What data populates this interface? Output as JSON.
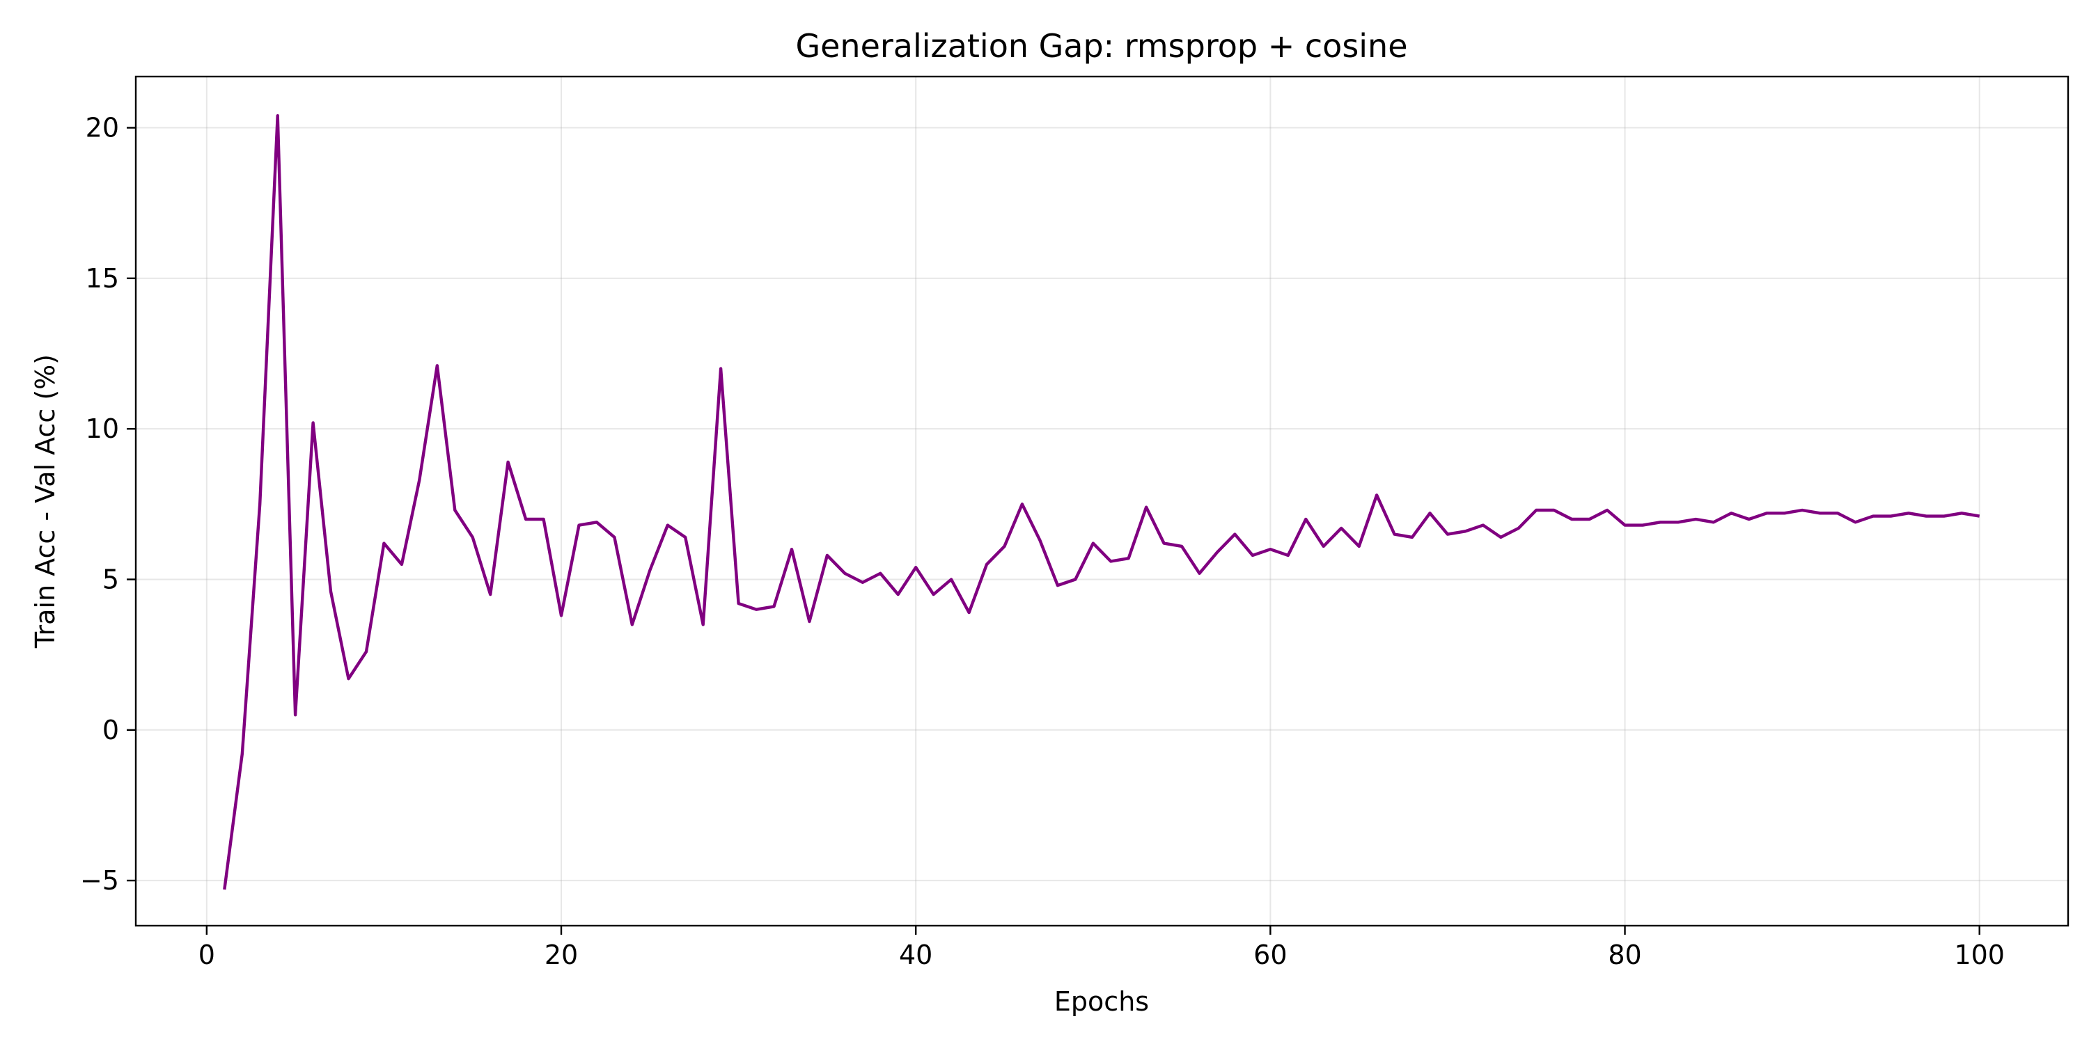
{
  "chart_data": {
    "type": "line",
    "title": "Generalization Gap: rmsprop + cosine",
    "xlabel": "Epochs",
    "ylabel": "Train Acc - Val Acc (%)",
    "xlim": [
      -4,
      105
    ],
    "ylim": [
      -6.5,
      21.7
    ],
    "xticks": [
      0,
      20,
      40,
      60,
      80,
      100
    ],
    "xtick_labels": [
      "0",
      "20",
      "40",
      "60",
      "80",
      "100"
    ],
    "yticks": [
      -5,
      0,
      5,
      10,
      15,
      20
    ],
    "ytick_labels": [
      "−5",
      "0",
      "5",
      "10",
      "15",
      "20"
    ],
    "grid": true,
    "series": [
      {
        "color": "#800080",
        "x": [
          1,
          2,
          3,
          4,
          5,
          6,
          7,
          8,
          9,
          10,
          11,
          12,
          13,
          14,
          15,
          16,
          17,
          18,
          19,
          20,
          21,
          22,
          23,
          24,
          25,
          26,
          27,
          28,
          29,
          30,
          31,
          32,
          33,
          34,
          35,
          36,
          37,
          38,
          39,
          40,
          41,
          42,
          43,
          44,
          45,
          46,
          47,
          48,
          49,
          50,
          51,
          52,
          53,
          54,
          55,
          56,
          57,
          58,
          59,
          60,
          61,
          62,
          63,
          64,
          65,
          66,
          67,
          68,
          69,
          70,
          71,
          72,
          73,
          74,
          75,
          76,
          77,
          78,
          79,
          80,
          81,
          82,
          83,
          84,
          85,
          86,
          87,
          88,
          89,
          90,
          91,
          92,
          93,
          94,
          95,
          96,
          97,
          98,
          99,
          100
        ],
        "values": [
          -5.3,
          -0.8,
          7.5,
          20.4,
          0.5,
          10.2,
          4.6,
          1.7,
          2.6,
          6.2,
          5.5,
          8.3,
          12.1,
          7.3,
          6.4,
          4.5,
          8.9,
          7.0,
          7.0,
          3.8,
          6.8,
          6.9,
          6.4,
          3.5,
          5.3,
          6.8,
          6.4,
          3.5,
          12.0,
          4.2,
          4.0,
          4.1,
          6.0,
          3.6,
          5.8,
          5.2,
          4.9,
          5.2,
          4.5,
          5.4,
          4.5,
          5.0,
          3.9,
          5.5,
          6.1,
          7.5,
          6.3,
          4.8,
          5.0,
          6.2,
          5.6,
          5.7,
          7.4,
          6.2,
          6.1,
          5.2,
          5.9,
          6.5,
          5.8,
          6.0,
          5.8,
          7.0,
          6.1,
          6.7,
          6.1,
          7.8,
          6.5,
          6.4,
          7.2,
          6.5,
          6.6,
          6.8,
          6.4,
          6.7,
          7.3,
          7.3,
          7.0,
          7.0,
          7.3,
          6.8,
          6.8,
          6.9,
          6.9,
          7.0,
          6.9,
          7.2,
          7.0,
          7.2,
          7.2,
          7.3,
          7.2,
          7.2,
          6.9,
          7.1,
          7.1,
          7.2,
          7.1,
          7.1,
          7.2,
          7.1
        ]
      }
    ]
  }
}
